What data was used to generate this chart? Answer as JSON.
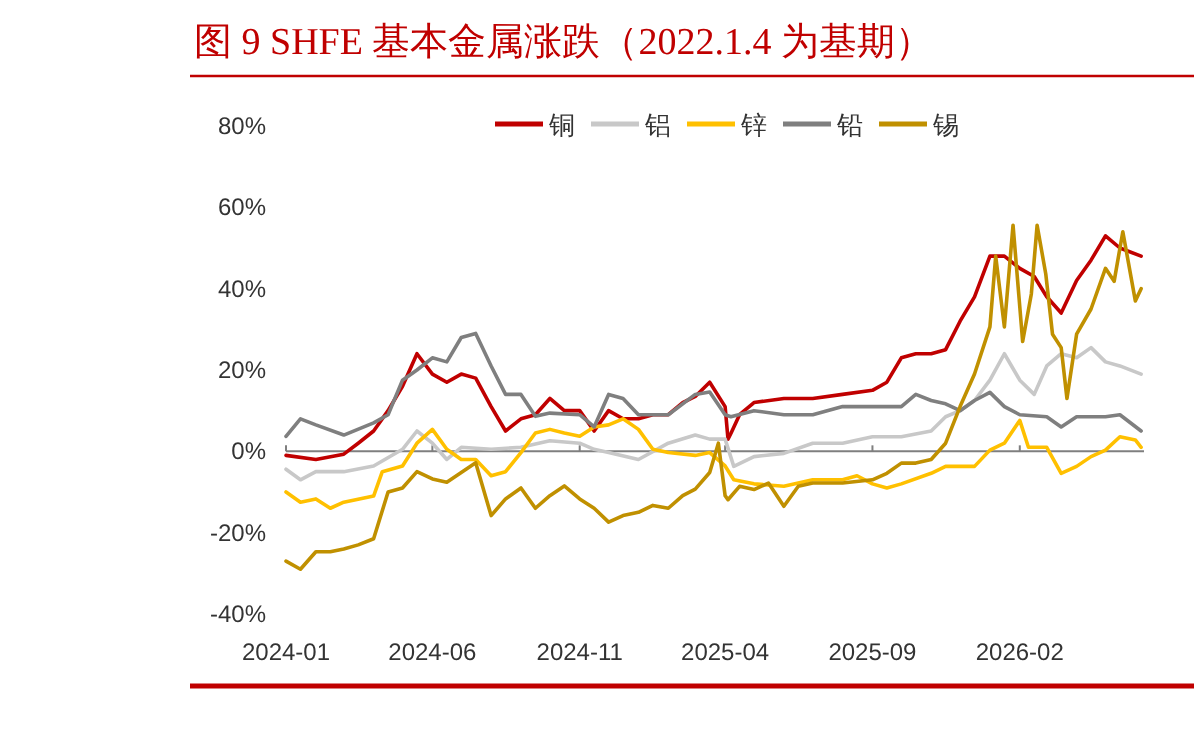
{
  "chart_data": {
    "type": "line",
    "title": "图 9  SHFE 基本金属涨跌（2022.1.4 为基期）",
    "legend": "top",
    "marker": "none",
    "line_style": "solid",
    "xlim": [
      "2024-01-01",
      "2026-06-10"
    ],
    "xticks": [
      "2024-01",
      "2024-06",
      "2024-11",
      "2025-04",
      "2025-09",
      "2026-02"
    ],
    "ylim": [
      -40,
      80
    ],
    "yticks": [
      {
        "value": -40,
        "label": "-40%"
      },
      {
        "value": -20,
        "label": "-20%"
      },
      {
        "value": 0,
        "label": "0%"
      },
      {
        "value": 20,
        "label": "20%"
      },
      {
        "value": 40,
        "label": "40%"
      },
      {
        "value": 60,
        "label": "60%"
      },
      {
        "value": 80,
        "label": "80%"
      }
    ],
    "series": [
      {
        "name": "铜",
        "color": "#c00000",
        "x": [
          "2024-01-01",
          "2024-02-01",
          "2024-03-01",
          "2024-03-16",
          "2024-04-01",
          "2024-04-16",
          "2024-05-01",
          "2024-05-16",
          "2024-06-01",
          "2024-06-16",
          "2024-07-01",
          "2024-07-16",
          "2024-08-01",
          "2024-08-16",
          "2024-09-01",
          "2024-09-16",
          "2024-10-01",
          "2024-10-16",
          "2024-11-01",
          "2024-11-16",
          "2024-12-01",
          "2024-12-16",
          "2025-01-01",
          "2025-01-16",
          "2025-02-01",
          "2025-02-16",
          "2025-03-01",
          "2025-03-16",
          "2025-04-01",
          "2025-04-04",
          "2025-04-07",
          "2025-04-16",
          "2025-05-01",
          "2025-06-01",
          "2025-07-01",
          "2025-08-01",
          "2025-09-01",
          "2025-09-16",
          "2025-10-01",
          "2025-10-16",
          "2025-11-01",
          "2025-11-16",
          "2025-12-01",
          "2025-12-16",
          "2026-01-01",
          "2026-01-16",
          "2026-02-01",
          "2026-02-16",
          "2026-03-01",
          "2026-03-16",
          "2026-04-01",
          "2026-04-16",
          "2026-05-01",
          "2026-05-16",
          "2026-06-07"
        ],
        "values": [
          -1,
          -2,
          -0.7,
          2,
          5,
          10,
          16,
          24,
          19,
          17,
          19,
          18,
          11,
          5,
          8,
          9,
          13,
          10,
          10,
          5,
          10,
          8,
          8,
          9,
          9,
          12,
          13.5,
          17,
          11,
          3,
          4.4,
          9,
          12,
          13,
          13,
          14,
          15,
          17,
          23,
          24,
          24,
          25,
          32,
          38,
          48,
          48,
          45,
          43,
          38,
          34,
          42,
          47,
          53,
          50,
          48
        ]
      },
      {
        "name": "铝",
        "color": "#c8c8c8",
        "x": [
          "2024-01-01",
          "2024-01-16",
          "2024-02-01",
          "2024-03-01",
          "2024-04-01",
          "2024-05-01",
          "2024-05-16",
          "2024-06-01",
          "2024-06-16",
          "2024-07-01",
          "2024-08-01",
          "2024-09-01",
          "2024-10-01",
          "2024-11-01",
          "2024-11-16",
          "2024-12-01",
          "2025-01-01",
          "2025-02-01",
          "2025-03-01",
          "2025-03-16",
          "2025-04-01",
          "2025-04-10",
          "2025-05-01",
          "2025-06-01",
          "2025-07-01",
          "2025-08-01",
          "2025-09-01",
          "2025-10-01",
          "2025-11-01",
          "2025-11-16",
          "2025-12-01",
          "2025-12-16",
          "2026-01-01",
          "2026-01-16",
          "2026-02-01",
          "2026-02-16",
          "2026-03-01",
          "2026-03-16",
          "2026-04-01",
          "2026-04-16",
          "2026-05-01",
          "2026-05-16",
          "2026-06-07"
        ],
        "values": [
          -4.4,
          -7,
          -5,
          -5,
          -3.6,
          0.5,
          5,
          2,
          -2,
          1,
          0.5,
          1,
          2.6,
          2,
          0.5,
          -0.3,
          -2,
          2,
          4,
          3,
          3,
          -3.7,
          -1.3,
          -0.5,
          2,
          2,
          3.6,
          3.6,
          5,
          8.5,
          10,
          12.5,
          17.5,
          24,
          17.5,
          14,
          21,
          24,
          23,
          25.5,
          22,
          21,
          19
        ]
      },
      {
        "name": "锌",
        "color": "#ffc000",
        "x": [
          "2024-01-01",
          "2024-01-16",
          "2024-02-01",
          "2024-02-16",
          "2024-03-01",
          "2024-04-01",
          "2024-04-10",
          "2024-05-01",
          "2024-05-16",
          "2024-06-01",
          "2024-06-16",
          "2024-07-01",
          "2024-07-16",
          "2024-08-01",
          "2024-08-16",
          "2024-09-01",
          "2024-09-16",
          "2024-10-01",
          "2024-10-16",
          "2024-11-01",
          "2024-11-16",
          "2024-12-01",
          "2024-12-16",
          "2025-01-01",
          "2025-01-16",
          "2025-02-01",
          "2025-03-01",
          "2025-03-16",
          "2025-04-01",
          "2025-04-10",
          "2025-05-01",
          "2025-06-01",
          "2025-07-01",
          "2025-08-01",
          "2025-08-16",
          "2025-09-01",
          "2025-09-16",
          "2025-10-01",
          "2025-11-01",
          "2025-11-16",
          "2025-12-01",
          "2025-12-16",
          "2026-01-01",
          "2026-01-16",
          "2026-02-01",
          "2026-02-10",
          "2026-02-16",
          "2026-03-01",
          "2026-03-16",
          "2026-04-01",
          "2026-04-16",
          "2026-05-01",
          "2026-05-16",
          "2026-06-01",
          "2026-06-07"
        ],
        "values": [
          -10,
          -12.5,
          -11.7,
          -14,
          -12.5,
          -11,
          -5,
          -3.6,
          2,
          5.4,
          0.5,
          -2,
          -2,
          -6,
          -5,
          -0.3,
          4.5,
          5.4,
          4.5,
          3.7,
          6,
          6.5,
          8,
          5.4,
          0.5,
          -0.3,
          -1,
          -0.3,
          -3.6,
          -7,
          -8,
          -8.6,
          -7,
          -7,
          -6,
          -8,
          -9,
          -8,
          -5.4,
          -3.7,
          -3.7,
          -3.7,
          0.3,
          2,
          7.6,
          1,
          1,
          1,
          -5.4,
          -3.7,
          -1.3,
          0.3,
          3.6,
          2.8,
          1
        ]
      },
      {
        "name": "铅",
        "color": "#7f7f7f",
        "x": [
          "2024-01-01",
          "2024-01-16",
          "2024-02-01",
          "2024-03-01",
          "2024-04-01",
          "2024-04-16",
          "2024-05-01",
          "2024-05-16",
          "2024-06-01",
          "2024-06-16",
          "2024-07-01",
          "2024-07-16",
          "2024-08-01",
          "2024-08-16",
          "2024-09-01",
          "2024-09-16",
          "2024-10-01",
          "2024-11-01",
          "2024-11-16",
          "2024-12-01",
          "2024-12-16",
          "2025-01-01",
          "2025-02-01",
          "2025-03-01",
          "2025-03-16",
          "2025-04-01",
          "2025-04-07",
          "2025-05-01",
          "2025-06-01",
          "2025-07-01",
          "2025-08-01",
          "2025-09-01",
          "2025-10-01",
          "2025-10-16",
          "2025-11-01",
          "2025-11-16",
          "2025-12-01",
          "2025-12-16",
          "2026-01-01",
          "2026-01-16",
          "2026-02-01",
          "2026-03-01",
          "2026-03-16",
          "2026-04-01",
          "2026-05-01",
          "2026-05-16",
          "2026-06-07"
        ],
        "values": [
          3.7,
          8,
          6.5,
          4,
          7,
          9,
          17.5,
          20,
          23,
          22,
          28,
          29,
          21,
          14,
          14,
          8.6,
          9.4,
          9,
          6,
          14,
          13,
          9,
          9,
          14,
          14.6,
          9,
          8.5,
          10,
          9,
          9,
          11,
          11,
          11,
          14,
          12.5,
          11.7,
          10,
          12.5,
          14.5,
          11,
          9,
          8.5,
          6,
          8.5,
          8.5,
          9,
          5
        ]
      },
      {
        "name": "锡",
        "color": "#c09000",
        "x": [
          "2024-01-01",
          "2024-01-16",
          "2024-02-01",
          "2024-02-16",
          "2024-03-01",
          "2024-03-16",
          "2024-04-01",
          "2024-04-16",
          "2024-05-01",
          "2024-05-16",
          "2024-06-01",
          "2024-06-16",
          "2024-07-01",
          "2024-07-16",
          "2024-08-01",
          "2024-08-16",
          "2024-09-01",
          "2024-09-16",
          "2024-10-01",
          "2024-10-16",
          "2024-11-01",
          "2024-11-16",
          "2024-12-01",
          "2024-12-16",
          "2025-01-01",
          "2025-01-16",
          "2025-02-01",
          "2025-02-16",
          "2025-03-01",
          "2025-03-16",
          "2025-03-25",
          "2025-04-01",
          "2025-04-04",
          "2025-04-16",
          "2025-05-01",
          "2025-05-16",
          "2025-06-01",
          "2025-06-16",
          "2025-07-01",
          "2025-08-01",
          "2025-09-01",
          "2025-09-16",
          "2025-10-01",
          "2025-10-16",
          "2025-11-01",
          "2025-11-16",
          "2025-12-01",
          "2025-12-16",
          "2026-01-01",
          "2026-01-07",
          "2026-01-16",
          "2026-01-25",
          "2026-02-04",
          "2026-02-13",
          "2026-02-19",
          "2026-02-28",
          "2026-03-07",
          "2026-03-16",
          "2026-03-22",
          "2026-04-01",
          "2026-04-16",
          "2026-05-01",
          "2026-05-10",
          "2026-05-19",
          "2026-06-01",
          "2026-06-07"
        ],
        "values": [
          -27,
          -29,
          -24.7,
          -24.7,
          -24,
          -23,
          -21.5,
          -10,
          -9,
          -5,
          -6.8,
          -7.6,
          -5.2,
          -2.8,
          -15.8,
          -11.7,
          -9,
          -14,
          -10.9,
          -8.5,
          -11.7,
          -14,
          -17.4,
          -15.8,
          -15,
          -13.3,
          -14,
          -10.9,
          -9.3,
          -5.2,
          2,
          -10.9,
          -11.9,
          -8.6,
          -9.4,
          -7.8,
          -13.5,
          -8.6,
          -7.8,
          -7.8,
          -7,
          -5.4,
          -2.9,
          -2.9,
          -2,
          2,
          11,
          19,
          30.6,
          48,
          30.6,
          55.6,
          27,
          38.7,
          55.6,
          43.6,
          28.8,
          25.5,
          13,
          28.8,
          35,
          45,
          41.8,
          54,
          37,
          40
        ]
      }
    ]
  }
}
